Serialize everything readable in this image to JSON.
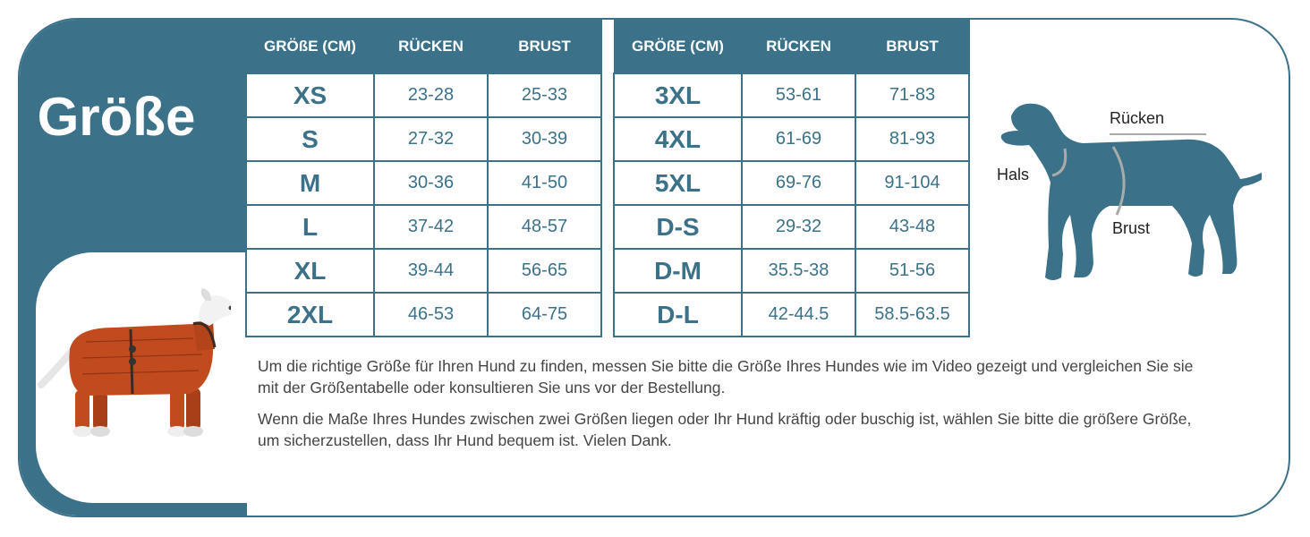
{
  "title": "Größe",
  "table_left": {
    "headers": [
      "GRÖßE (CM)",
      "RÜCKEN",
      "BRUST"
    ],
    "rows": [
      [
        "XS",
        "23-28",
        "25-33"
      ],
      [
        "S",
        "27-32",
        "30-39"
      ],
      [
        "M",
        "30-36",
        "41-50"
      ],
      [
        "L",
        "37-42",
        "48-57"
      ],
      [
        "XL",
        "39-44",
        "56-65"
      ],
      [
        "2XL",
        "46-53",
        "64-75"
      ]
    ]
  },
  "table_right": {
    "headers": [
      "GRÖßE (CM)",
      "RÜCKEN",
      "BRUST"
    ],
    "rows": [
      [
        "3XL",
        "53-61",
        "71-83"
      ],
      [
        "4XL",
        "61-69",
        "81-93"
      ],
      [
        "5XL",
        "69-76",
        "91-104"
      ],
      [
        "D-S",
        "29-32",
        "43-48"
      ],
      [
        "D-M",
        "35.5-38",
        "51-56"
      ],
      [
        "D-L",
        "42-44.5",
        "58.5-63.5"
      ]
    ]
  },
  "diagram": {
    "ruecken": "Rücken",
    "hals": "Hals",
    "brust": "Brust"
  },
  "text": {
    "p1": "Um die richtige Größe für Ihren Hund zu finden, messen Sie bitte die Größe Ihres Hundes wie im Video gezeigt und vergleichen Sie sie mit der Größentabelle oder konsultieren Sie uns vor der Bestellung.",
    "p2": "Wenn die Maße Ihres Hundes zwischen zwei Größen liegen oder Ihr Hund kräftig oder buschig ist, wählen Sie bitte die größere Größe, um sicherzustellen, dass Ihr Hund bequem ist. Vielen Dank."
  },
  "colors": {
    "primary": "#3b7289",
    "coat": "#c24a1f"
  }
}
